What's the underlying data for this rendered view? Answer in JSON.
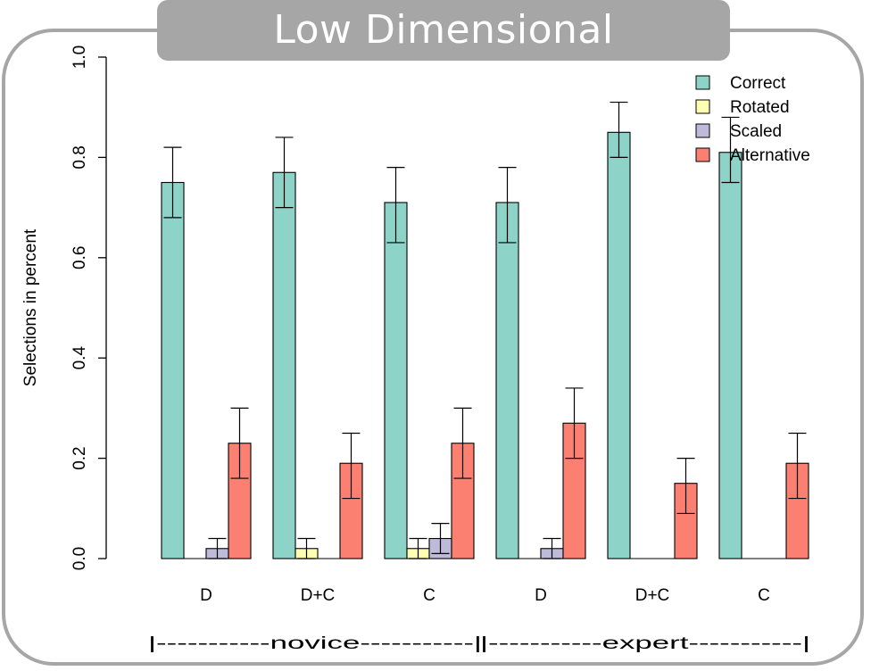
{
  "banner": {
    "title": "Low Dimensional"
  },
  "colors": {
    "frame": "#a6a6a6",
    "correct": "#8dd3c7",
    "rotated": "#ffffb3",
    "scaled": "#bebada",
    "alternative": "#fb8072"
  },
  "chart_data": {
    "type": "bar",
    "ylabel": "Selections in percent",
    "xlabel": "",
    "ylim": [
      0,
      1.0
    ],
    "yticks": [
      "0.0",
      "0.2",
      "0.4",
      "0.6",
      "0.8",
      "1.0"
    ],
    "categories": [
      "D",
      "D+C",
      "C",
      "D",
      "D+C",
      "C"
    ],
    "groups": [
      {
        "label": "|-----------novice-----------|"
      },
      {
        "label": "|-----------expert-----------|"
      }
    ],
    "legend_position": "top-right",
    "series": [
      {
        "name": "Correct",
        "color": "#8dd3c7",
        "values": [
          0.75,
          0.77,
          0.71,
          0.71,
          0.85,
          0.81
        ],
        "err_low": [
          0.68,
          0.7,
          0.63,
          0.63,
          0.8,
          0.75
        ],
        "err_high": [
          0.82,
          0.84,
          0.78,
          0.78,
          0.91,
          0.88
        ]
      },
      {
        "name": "Rotated",
        "color": "#ffffb3",
        "values": [
          0.0,
          0.02,
          0.02,
          0.0,
          0.0,
          0.0
        ],
        "err_low": [
          null,
          0.0,
          0.0,
          null,
          null,
          null
        ],
        "err_high": [
          null,
          0.04,
          0.04,
          null,
          null,
          null
        ]
      },
      {
        "name": "Scaled",
        "color": "#bebada",
        "values": [
          0.02,
          0.0,
          0.04,
          0.02,
          0.0,
          0.0
        ],
        "err_low": [
          0.0,
          null,
          0.01,
          0.0,
          null,
          null
        ],
        "err_high": [
          0.04,
          null,
          0.07,
          0.04,
          null,
          null
        ]
      },
      {
        "name": "Alternative",
        "color": "#fb8072",
        "values": [
          0.23,
          0.19,
          0.23,
          0.27,
          0.15,
          0.19
        ],
        "err_low": [
          0.16,
          0.12,
          0.16,
          0.2,
          0.09,
          0.12
        ],
        "err_high": [
          0.3,
          0.25,
          0.3,
          0.34,
          0.2,
          0.25
        ]
      }
    ]
  }
}
